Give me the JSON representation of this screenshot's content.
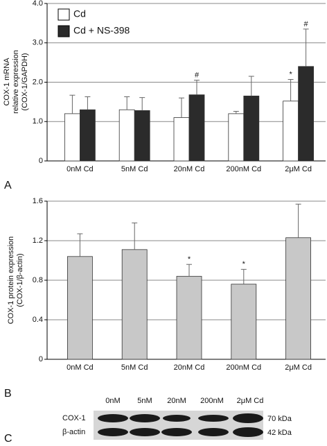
{
  "chart_data": [
    {
      "type": "bar",
      "panel_label": "A",
      "y_label": [
        "COX-1 mRNA",
        "relative expression",
        "(COX-1/GAPDH)"
      ],
      "categories": [
        "0nM Cd",
        "5nM Cd",
        "20nM Cd",
        "200nM Cd",
        "2μM Cd"
      ],
      "series": [
        {
          "name": "Cd",
          "color": "#ffffff",
          "values": [
            1.2,
            1.3,
            1.1,
            1.2,
            1.52
          ],
          "errors": [
            0.47,
            0.33,
            0.5,
            0.06,
            0.55
          ],
          "annotations": [
            null,
            null,
            null,
            null,
            "*"
          ]
        },
        {
          "name": "Cd + NS-398",
          "color": "#2b2b2b",
          "values": [
            1.3,
            1.28,
            1.68,
            1.65,
            2.4
          ],
          "errors": [
            0.33,
            0.33,
            0.37,
            0.5,
            0.95
          ],
          "annotations": [
            null,
            null,
            "#",
            null,
            "#"
          ]
        }
      ],
      "ylim": [
        0,
        4
      ],
      "yticks": [
        0,
        {
          "value": 1,
          "label": "1.0"
        },
        {
          "value": 2,
          "label": "2.0"
        },
        {
          "value": 3,
          "label": "3.0"
        },
        {
          "value": 4,
          "label": "4.0"
        }
      ],
      "grid": true,
      "legend": "top-left"
    },
    {
      "type": "bar",
      "panel_label": "B",
      "y_label": [
        "COX-1 protein expression",
        "(COX-1/β-actin)"
      ],
      "categories": [
        "0nM Cd",
        "5nM Cd",
        "20nM Cd",
        "200nM Cd",
        "2μM Cd"
      ],
      "values": [
        1.04,
        1.11,
        0.84,
        0.76,
        1.23
      ],
      "errors": [
        0.23,
        0.27,
        0.12,
        0.15,
        0.34
      ],
      "annotations": [
        null,
        null,
        "*",
        "*",
        null
      ],
      "color": "#c8c8c8",
      "ylim": [
        0,
        1.6
      ],
      "yticks": [
        0,
        0.4,
        0.8,
        1.2,
        1.6
      ],
      "grid": true
    }
  ],
  "blot": {
    "panel_label": "C",
    "lanes": [
      "0nM",
      "5nM",
      "20nM",
      "200nM",
      "2μM Cd"
    ],
    "rows": [
      "COX-1",
      "β-actin"
    ],
    "sizes": [
      "70 kDa",
      "42 kDa"
    ]
  }
}
